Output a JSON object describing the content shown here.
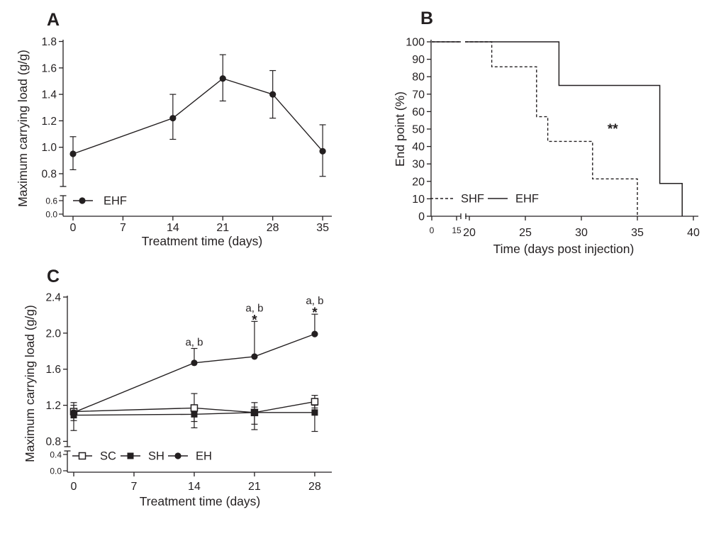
{
  "colors": {
    "ink": "#231f20",
    "background": "#ffffff"
  },
  "chart_data": [
    {
      "id": "A",
      "type": "line",
      "panel_label": "A",
      "xlabel": "Treatment time (days)",
      "ylabel": "Maximum carrying load (g/g)",
      "x_ticks": [
        0,
        7,
        14,
        21,
        28,
        35
      ],
      "xlim": [
        0,
        35
      ],
      "y_ticks_main": [
        0.8,
        1.0,
        1.2,
        1.4,
        1.6,
        1.8
      ],
      "y_ticks_break": [
        0.0,
        0.6
      ],
      "y_axis_break_between": [
        0.0,
        0.7
      ],
      "ylim": [
        0.0,
        1.8
      ],
      "grid": false,
      "series": [
        {
          "name": "EHF",
          "marker": "circle-filled",
          "line": "solid",
          "x": [
            0,
            14,
            21,
            28,
            35
          ],
          "y": [
            0.95,
            1.22,
            1.52,
            1.4,
            0.97
          ],
          "err_hi": [
            1.08,
            1.4,
            1.7,
            1.58,
            1.17
          ],
          "err_lo": [
            0.83,
            1.06,
            1.35,
            1.22,
            0.78
          ]
        }
      ],
      "legend": [
        {
          "label": "EHF",
          "marker": "circle-filled",
          "line": "solid"
        }
      ],
      "legend_position": "bottom-left-inside",
      "annotations": []
    },
    {
      "id": "B",
      "type": "step",
      "panel_label": "B",
      "xlabel": "Time (days post injection)",
      "ylabel": "End point (%)",
      "x_ticks_pre_break": [
        0,
        15
      ],
      "x_ticks_main": [
        20,
        25,
        30,
        35,
        40
      ],
      "x_axis_break_between": [
        15,
        20
      ],
      "xlim": [
        0,
        40
      ],
      "y_ticks": [
        0,
        10,
        20,
        30,
        40,
        50,
        60,
        70,
        80,
        90,
        100
      ],
      "ylim": [
        0,
        100
      ],
      "grid": false,
      "series": [
        {
          "name": "SHF",
          "line": "dashed",
          "points": [
            [
              0,
              100
            ],
            [
              22,
              100
            ],
            [
              22,
              85.7
            ],
            [
              26,
              85.7
            ],
            [
              26,
              57.1
            ],
            [
              27,
              57.1
            ],
            [
              27,
              42.9
            ],
            [
              31,
              42.9
            ],
            [
              31,
              21.4
            ],
            [
              35,
              21.4
            ],
            [
              35,
              0
            ]
          ]
        },
        {
          "name": "EHF",
          "line": "solid",
          "points": [
            [
              0,
              100
            ],
            [
              28,
              100
            ],
            [
              28,
              75
            ],
            [
              37,
              75
            ],
            [
              37,
              18.8
            ],
            [
              39,
              18.8
            ],
            [
              39,
              0
            ]
          ]
        }
      ],
      "legend": [
        {
          "label": "SHF",
          "line": "dashed"
        },
        {
          "label": "EHF",
          "line": "solid"
        }
      ],
      "legend_position": "bottom-left-inside",
      "annotations": [
        {
          "text": "**",
          "x": 32.8,
          "y": 50
        }
      ]
    },
    {
      "id": "C",
      "type": "line",
      "panel_label": "C",
      "xlabel": "Treatment time (days)",
      "ylabel": "Maximum carrying load (g/g)",
      "x_ticks": [
        0,
        7,
        14,
        21,
        28
      ],
      "xlim": [
        0,
        28
      ],
      "y_ticks_main": [
        0.8,
        1.2,
        1.6,
        2.0,
        2.4
      ],
      "y_ticks_break": [
        0.0,
        0.4
      ],
      "y_axis_break_between": [
        0.0,
        0.7
      ],
      "ylim": [
        0.0,
        2.4
      ],
      "grid": false,
      "series": [
        {
          "name": "SC",
          "marker": "square-open",
          "line": "solid",
          "x": [
            0,
            14,
            21,
            28
          ],
          "y": [
            1.13,
            1.17,
            1.12,
            1.24
          ],
          "err_hi": [
            1.23,
            1.33,
            1.23,
            1.31
          ],
          "err_lo": [
            1.03,
            1.02,
            0.99,
            1.17
          ]
        },
        {
          "name": "SH",
          "marker": "square-filled",
          "line": "solid",
          "x": [
            0,
            14,
            21,
            28
          ],
          "y": [
            1.09,
            1.1,
            1.12,
            1.12
          ],
          "err_hi": [
            1.2,
            1.18,
            1.18,
            1.2
          ],
          "err_lo": [
            0.92,
            0.95,
            0.93,
            0.91
          ]
        },
        {
          "name": "EH",
          "marker": "circle-filled",
          "line": "solid",
          "x": [
            0,
            14,
            21,
            28
          ],
          "y": [
            1.12,
            1.67,
            1.74,
            1.99
          ],
          "err_hi": [
            null,
            1.83,
            2.13,
            2.21
          ],
          "err_lo": [
            null,
            null,
            null,
            null
          ]
        }
      ],
      "legend": [
        {
          "label": "SC",
          "marker": "square-open",
          "line": "solid"
        },
        {
          "label": "SH",
          "marker": "square-filled",
          "line": "solid"
        },
        {
          "label": "EH",
          "marker": "circle-filled",
          "line": "solid"
        }
      ],
      "legend_position": "bottom-left-inside",
      "annotations": [
        {
          "series": "EH",
          "x": 14,
          "labels": [
            "a, b"
          ]
        },
        {
          "series": "EH",
          "x": 21,
          "labels": [
            "a, b",
            "*"
          ]
        },
        {
          "series": "EH",
          "x": 28,
          "labels": [
            "a, b",
            "*"
          ]
        }
      ]
    }
  ]
}
